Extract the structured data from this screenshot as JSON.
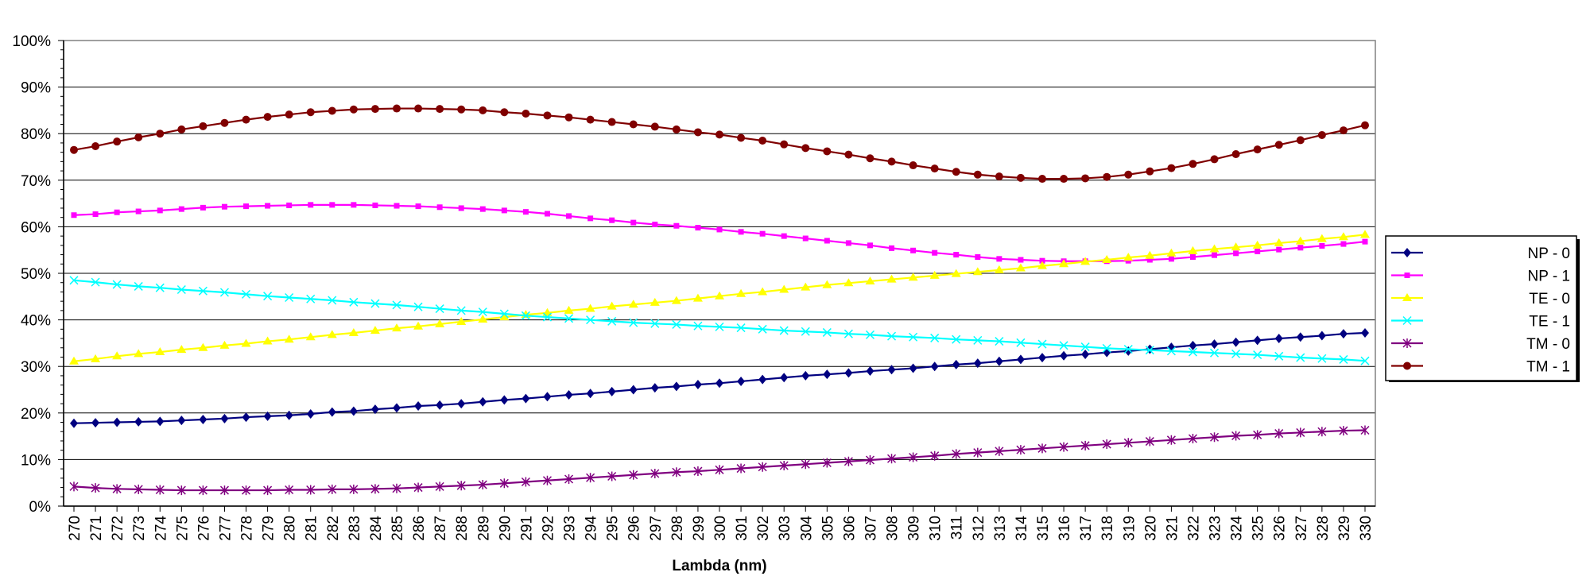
{
  "chart_data": {
    "type": "line",
    "title": "",
    "xlabel": "Lambda (nm)",
    "ylabel": "",
    "ylim": [
      0,
      100
    ],
    "y_ticks": [
      "0%",
      "10%",
      "20%",
      "30%",
      "40%",
      "50%",
      "60%",
      "70%",
      "80%",
      "90%",
      "100%"
    ],
    "grid": "horizontal",
    "legend_position": "right",
    "x": [
      270,
      271,
      272,
      273,
      274,
      275,
      276,
      277,
      278,
      279,
      280,
      281,
      282,
      283,
      284,
      285,
      286,
      287,
      288,
      289,
      290,
      291,
      292,
      293,
      294,
      295,
      296,
      297,
      298,
      299,
      300,
      301,
      302,
      303,
      304,
      305,
      306,
      307,
      308,
      309,
      310,
      311,
      312,
      313,
      314,
      315,
      316,
      317,
      318,
      319,
      320,
      321,
      322,
      323,
      324,
      325,
      326,
      327,
      328,
      329,
      330
    ],
    "series": [
      {
        "name": "NP - 0",
        "color": "#000080",
        "marker": "diamond",
        "values": [
          17.8,
          17.9,
          18.0,
          18.1,
          18.2,
          18.4,
          18.6,
          18.8,
          19.1,
          19.3,
          19.5,
          19.8,
          20.2,
          20.4,
          20.8,
          21.1,
          21.5,
          21.7,
          22.0,
          22.4,
          22.8,
          23.1,
          23.5,
          23.9,
          24.2,
          24.6,
          25.0,
          25.4,
          25.7,
          26.1,
          26.4,
          26.8,
          27.2,
          27.6,
          28.0,
          28.3,
          28.6,
          29.0,
          29.3,
          29.6,
          30.0,
          30.4,
          30.7,
          31.1,
          31.5,
          31.9,
          32.3,
          32.6,
          33.0,
          33.3,
          33.7,
          34.1,
          34.5,
          34.8,
          35.2,
          35.6,
          36.0,
          36.3,
          36.6,
          37.0,
          37.2
        ]
      },
      {
        "name": "NP - 1",
        "color": "#ff00ff",
        "marker": "square",
        "values": [
          62.5,
          62.7,
          63.1,
          63.3,
          63.5,
          63.8,
          64.1,
          64.3,
          64.4,
          64.5,
          64.6,
          64.7,
          64.7,
          64.7,
          64.6,
          64.5,
          64.4,
          64.2,
          64.0,
          63.8,
          63.5,
          63.2,
          62.8,
          62.3,
          61.8,
          61.4,
          60.9,
          60.5,
          60.2,
          59.8,
          59.4,
          58.9,
          58.5,
          58.0,
          57.5,
          57.0,
          56.5,
          56.0,
          55.4,
          54.9,
          54.4,
          54.0,
          53.5,
          53.1,
          52.9,
          52.7,
          52.6,
          52.6,
          52.6,
          52.7,
          52.9,
          53.1,
          53.5,
          53.9,
          54.3,
          54.7,
          55.1,
          55.5,
          55.9,
          56.3,
          56.8
        ]
      },
      {
        "name": "TE - 0",
        "color": "#ffff00",
        "marker": "triangle",
        "values": [
          31.1,
          31.6,
          32.2,
          32.7,
          33.1,
          33.6,
          34.0,
          34.5,
          34.9,
          35.4,
          35.8,
          36.3,
          36.8,
          37.2,
          37.7,
          38.2,
          38.6,
          39.1,
          39.6,
          40.1,
          40.6,
          41.1,
          41.5,
          42.0,
          42.4,
          42.9,
          43.3,
          43.7,
          44.1,
          44.6,
          45.1,
          45.6,
          46.0,
          46.5,
          47.0,
          47.5,
          47.9,
          48.3,
          48.7,
          49.1,
          49.5,
          49.9,
          50.3,
          50.7,
          51.1,
          51.6,
          52.0,
          52.5,
          52.9,
          53.4,
          53.8,
          54.3,
          54.8,
          55.2,
          55.6,
          56.0,
          56.5,
          56.9,
          57.4,
          57.8,
          58.3
        ]
      },
      {
        "name": "TE - 1",
        "color": "#00ffff",
        "marker": "asterisk",
        "values": [
          48.5,
          48.1,
          47.6,
          47.2,
          46.9,
          46.5,
          46.2,
          45.9,
          45.5,
          45.1,
          44.8,
          44.5,
          44.2,
          43.8,
          43.5,
          43.2,
          42.8,
          42.4,
          42.0,
          41.7,
          41.3,
          40.9,
          40.6,
          40.3,
          40.0,
          39.7,
          39.4,
          39.2,
          39.0,
          38.7,
          38.5,
          38.3,
          38.0,
          37.7,
          37.5,
          37.3,
          37.0,
          36.8,
          36.5,
          36.3,
          36.1,
          35.8,
          35.6,
          35.4,
          35.1,
          34.8,
          34.5,
          34.2,
          33.9,
          33.7,
          33.5,
          33.3,
          33.1,
          32.9,
          32.7,
          32.5,
          32.2,
          31.9,
          31.7,
          31.5,
          31.2
        ]
      },
      {
        "name": "TM - 0",
        "color": "#800080",
        "marker": "star",
        "values": [
          4.2,
          3.9,
          3.7,
          3.6,
          3.5,
          3.4,
          3.4,
          3.4,
          3.4,
          3.4,
          3.5,
          3.5,
          3.6,
          3.6,
          3.7,
          3.8,
          4.0,
          4.2,
          4.4,
          4.6,
          4.9,
          5.2,
          5.5,
          5.8,
          6.1,
          6.4,
          6.7,
          7.0,
          7.3,
          7.5,
          7.8,
          8.1,
          8.4,
          8.7,
          9.0,
          9.3,
          9.6,
          9.9,
          10.2,
          10.5,
          10.8,
          11.2,
          11.5,
          11.8,
          12.1,
          12.4,
          12.7,
          13.0,
          13.3,
          13.6,
          13.9,
          14.2,
          14.5,
          14.8,
          15.1,
          15.3,
          15.6,
          15.8,
          16.0,
          16.2,
          16.3
        ]
      },
      {
        "name": "TM - 1",
        "color": "#800000",
        "marker": "circle",
        "values": [
          76.5,
          77.3,
          78.3,
          79.2,
          80.0,
          80.9,
          81.6,
          82.3,
          83.0,
          83.6,
          84.1,
          84.6,
          84.9,
          85.2,
          85.3,
          85.4,
          85.4,
          85.3,
          85.2,
          85.0,
          84.6,
          84.3,
          83.9,
          83.5,
          83.0,
          82.5,
          82.0,
          81.5,
          80.9,
          80.3,
          79.8,
          79.1,
          78.5,
          77.7,
          76.9,
          76.2,
          75.5,
          74.7,
          74.0,
          73.2,
          72.5,
          71.8,
          71.2,
          70.8,
          70.5,
          70.3,
          70.3,
          70.4,
          70.7,
          71.2,
          71.9,
          72.6,
          73.5,
          74.5,
          75.6,
          76.6,
          77.6,
          78.6,
          79.7,
          80.7,
          81.8
        ]
      }
    ]
  }
}
